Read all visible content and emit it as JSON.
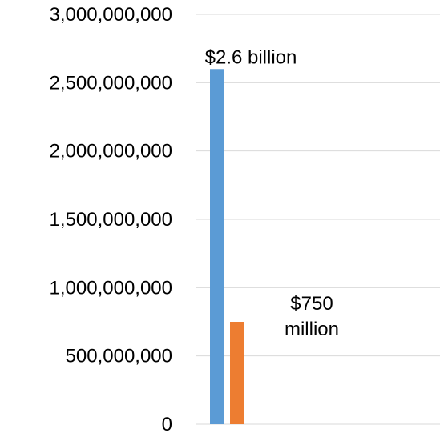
{
  "chart_data": {
    "type": "bar",
    "title": "",
    "xlabel": "",
    "ylabel": "",
    "ylim": [
      0,
      3000000000
    ],
    "yticks": [
      0,
      500000000,
      1000000000,
      1500000000,
      2000000000,
      2500000000,
      3000000000
    ],
    "ytick_labels": [
      "0",
      "500,000,000",
      "1,000,000,000",
      "1,500,000,000",
      "2,000,000,000",
      "2,500,000,000",
      "3,000,000,000"
    ],
    "grid": true,
    "legend": "none",
    "series": [
      {
        "values": [
          2600000000
        ],
        "color": "#5b9bd5",
        "label_lines": [
          "$2.6 billion"
        ]
      },
      {
        "values": [
          750000000
        ],
        "color": "#ed7d31",
        "label_lines": [
          "$750",
          "million"
        ]
      }
    ]
  }
}
